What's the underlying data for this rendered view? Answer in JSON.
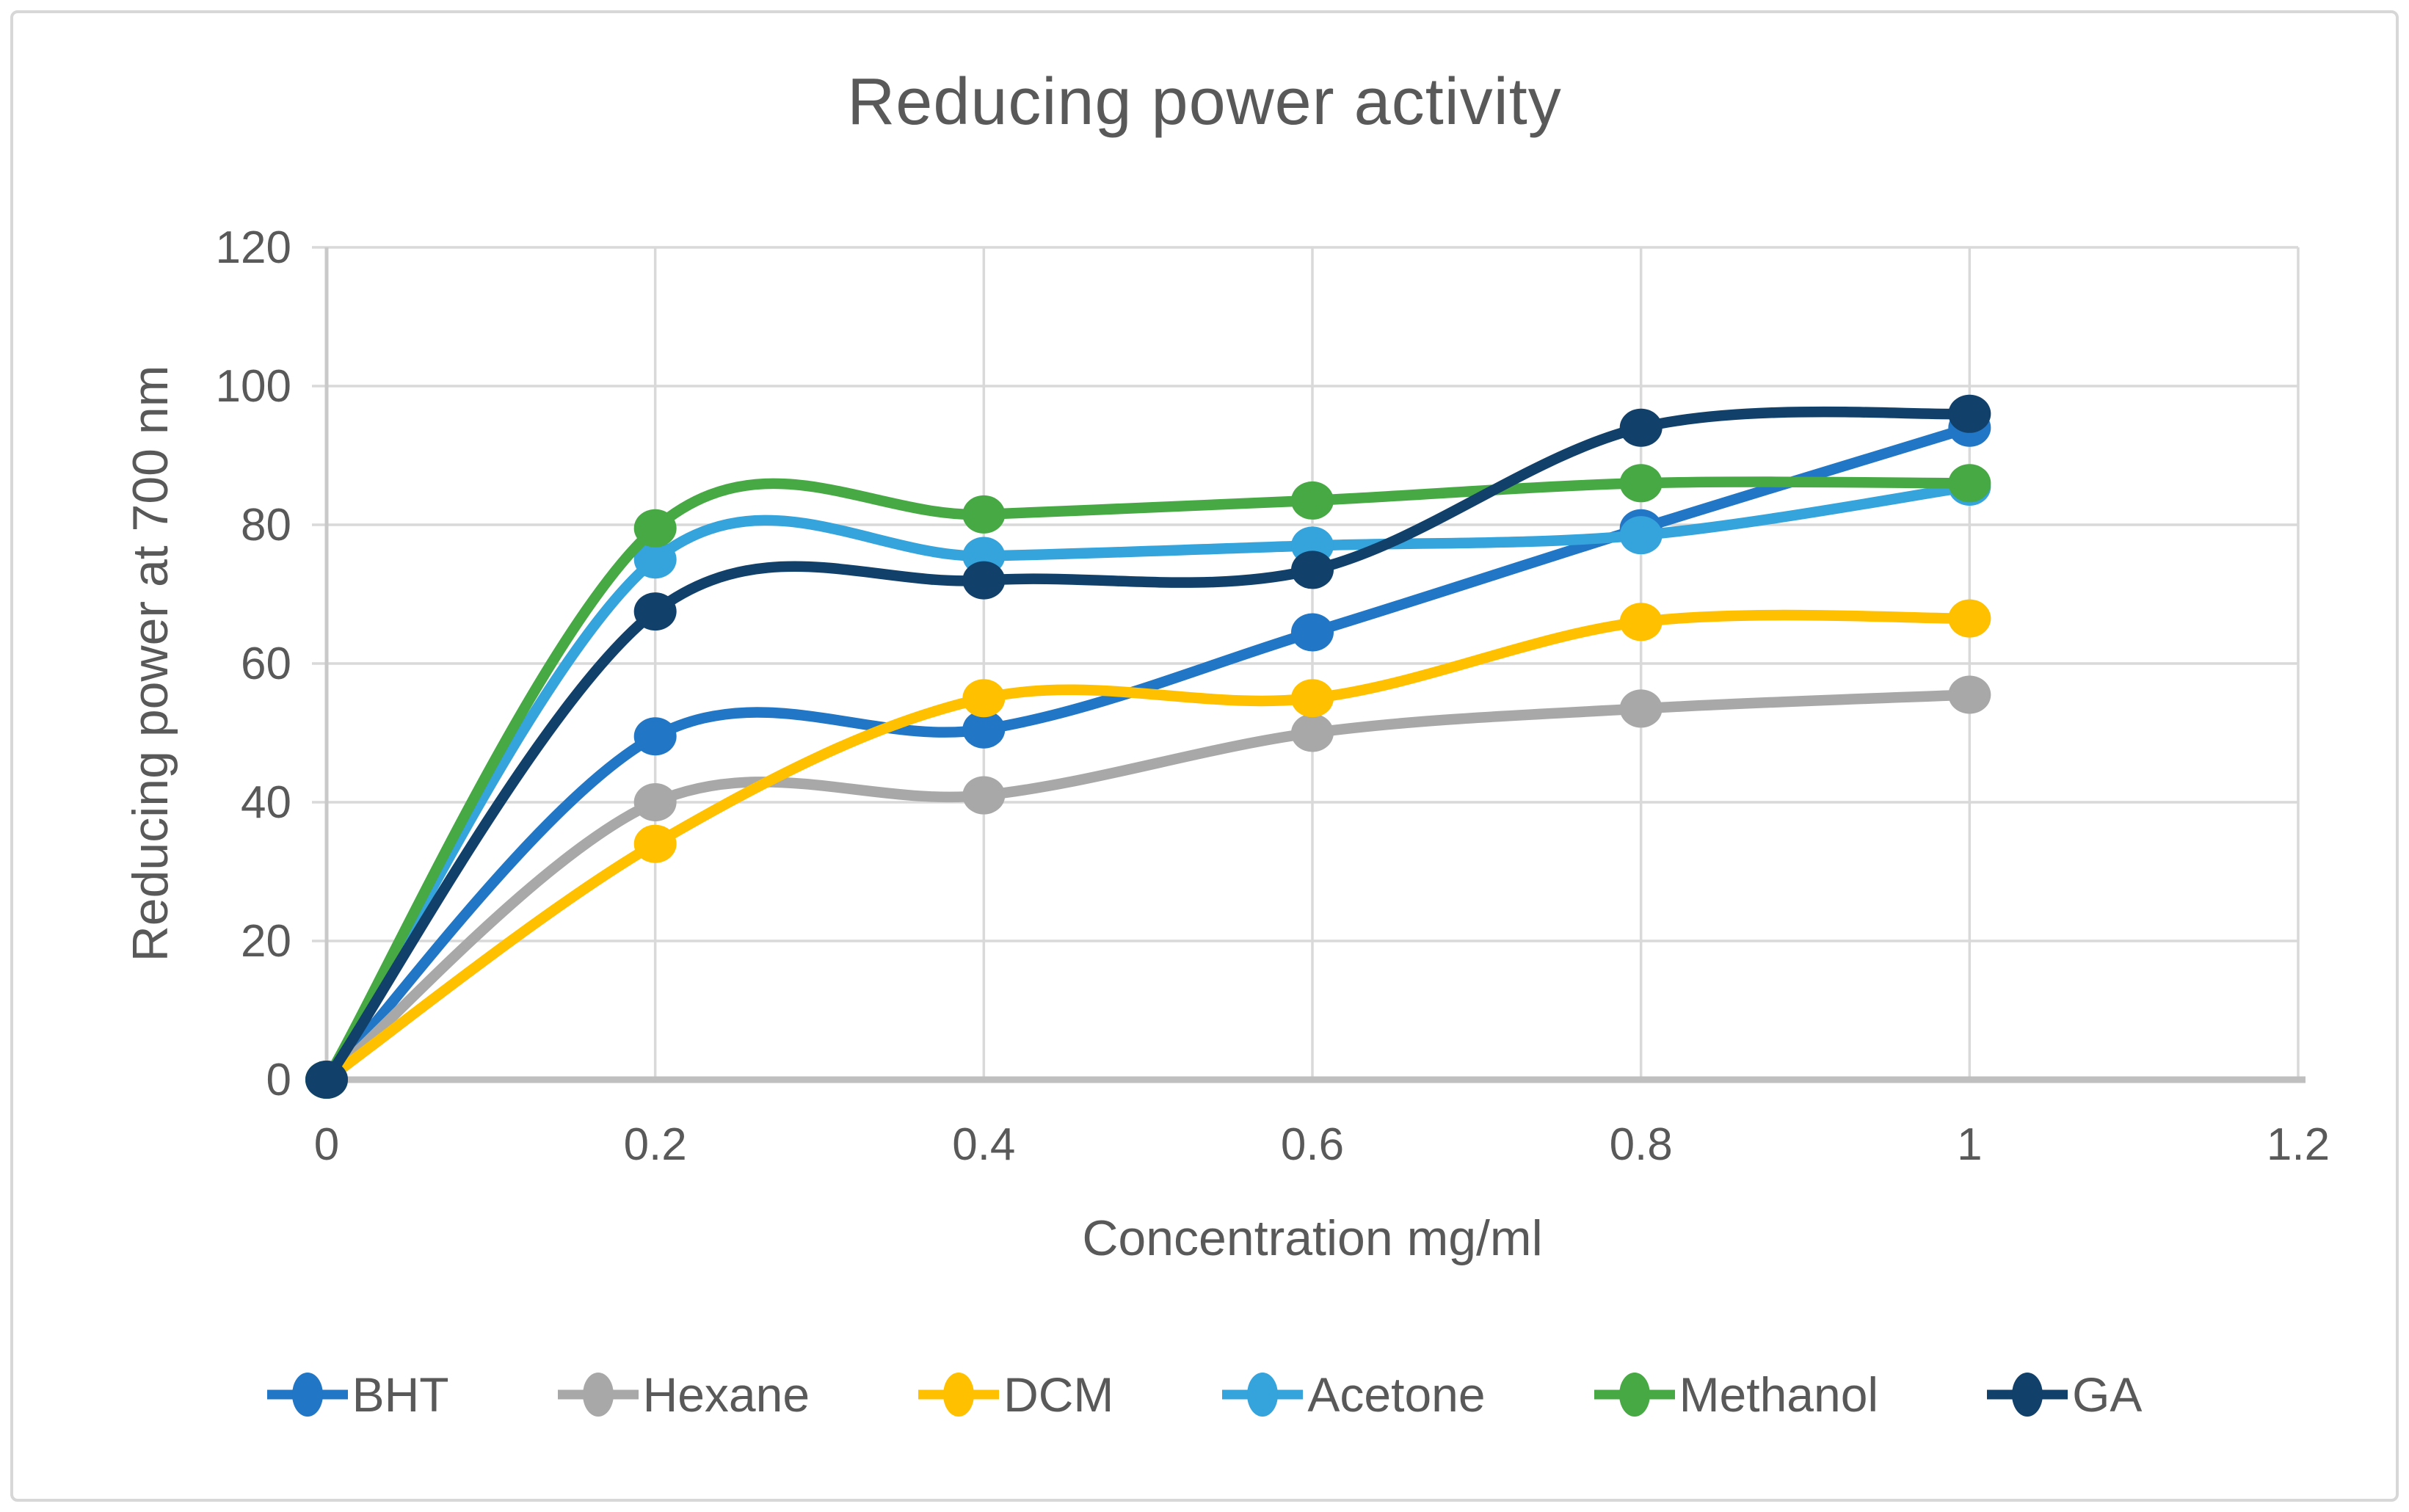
{
  "chart_data": {
    "type": "line",
    "title": "Reducing power activity",
    "xlabel": "Concentration mg/ml",
    "ylabel": "Reducing power at  700 nm",
    "x": [
      0,
      0.2,
      0.4,
      0.6,
      0.8,
      1
    ],
    "series": [
      {
        "name": "BHT",
        "color": "#2176C5",
        "values": [
          0,
          49.5,
          50.5,
          64.5,
          79.5,
          94
        ]
      },
      {
        "name": "Hexane",
        "color": "#A8A8A8",
        "values": [
          0,
          40,
          41,
          50,
          53.5,
          55.5
        ]
      },
      {
        "name": "DCM",
        "color": "#FFC000",
        "values": [
          0,
          34,
          55,
          55,
          66,
          66.5
        ]
      },
      {
        "name": "Acetone",
        "color": "#35A3DC",
        "values": [
          0,
          75,
          75.5,
          77,
          78.5,
          85.5
        ]
      },
      {
        "name": "Methanol",
        "color": "#47A943",
        "values": [
          0,
          79.5,
          81.5,
          83.5,
          86,
          86
        ]
      },
      {
        "name": "GA",
        "color": "#11406A",
        "values": [
          0,
          67.5,
          72,
          73.5,
          94,
          96
        ]
      }
    ],
    "xlim": [
      0,
      1.2
    ],
    "ylim": [
      0,
      120
    ],
    "x_ticks": [
      0,
      0.2,
      0.4,
      0.6,
      0.8,
      1,
      1.2
    ],
    "y_ticks": [
      0,
      20,
      40,
      60,
      80,
      100,
      120
    ],
    "grid": true,
    "smooth": true,
    "legend_position": "bottom",
    "colors": {
      "gridline": "#D9D9D9",
      "axis_line": "#BFBFBF",
      "left_axis_line": "#C9C9C9",
      "text": "#595959",
      "background": "#FFFFFF",
      "frame_border": "#D7D7D7"
    }
  }
}
